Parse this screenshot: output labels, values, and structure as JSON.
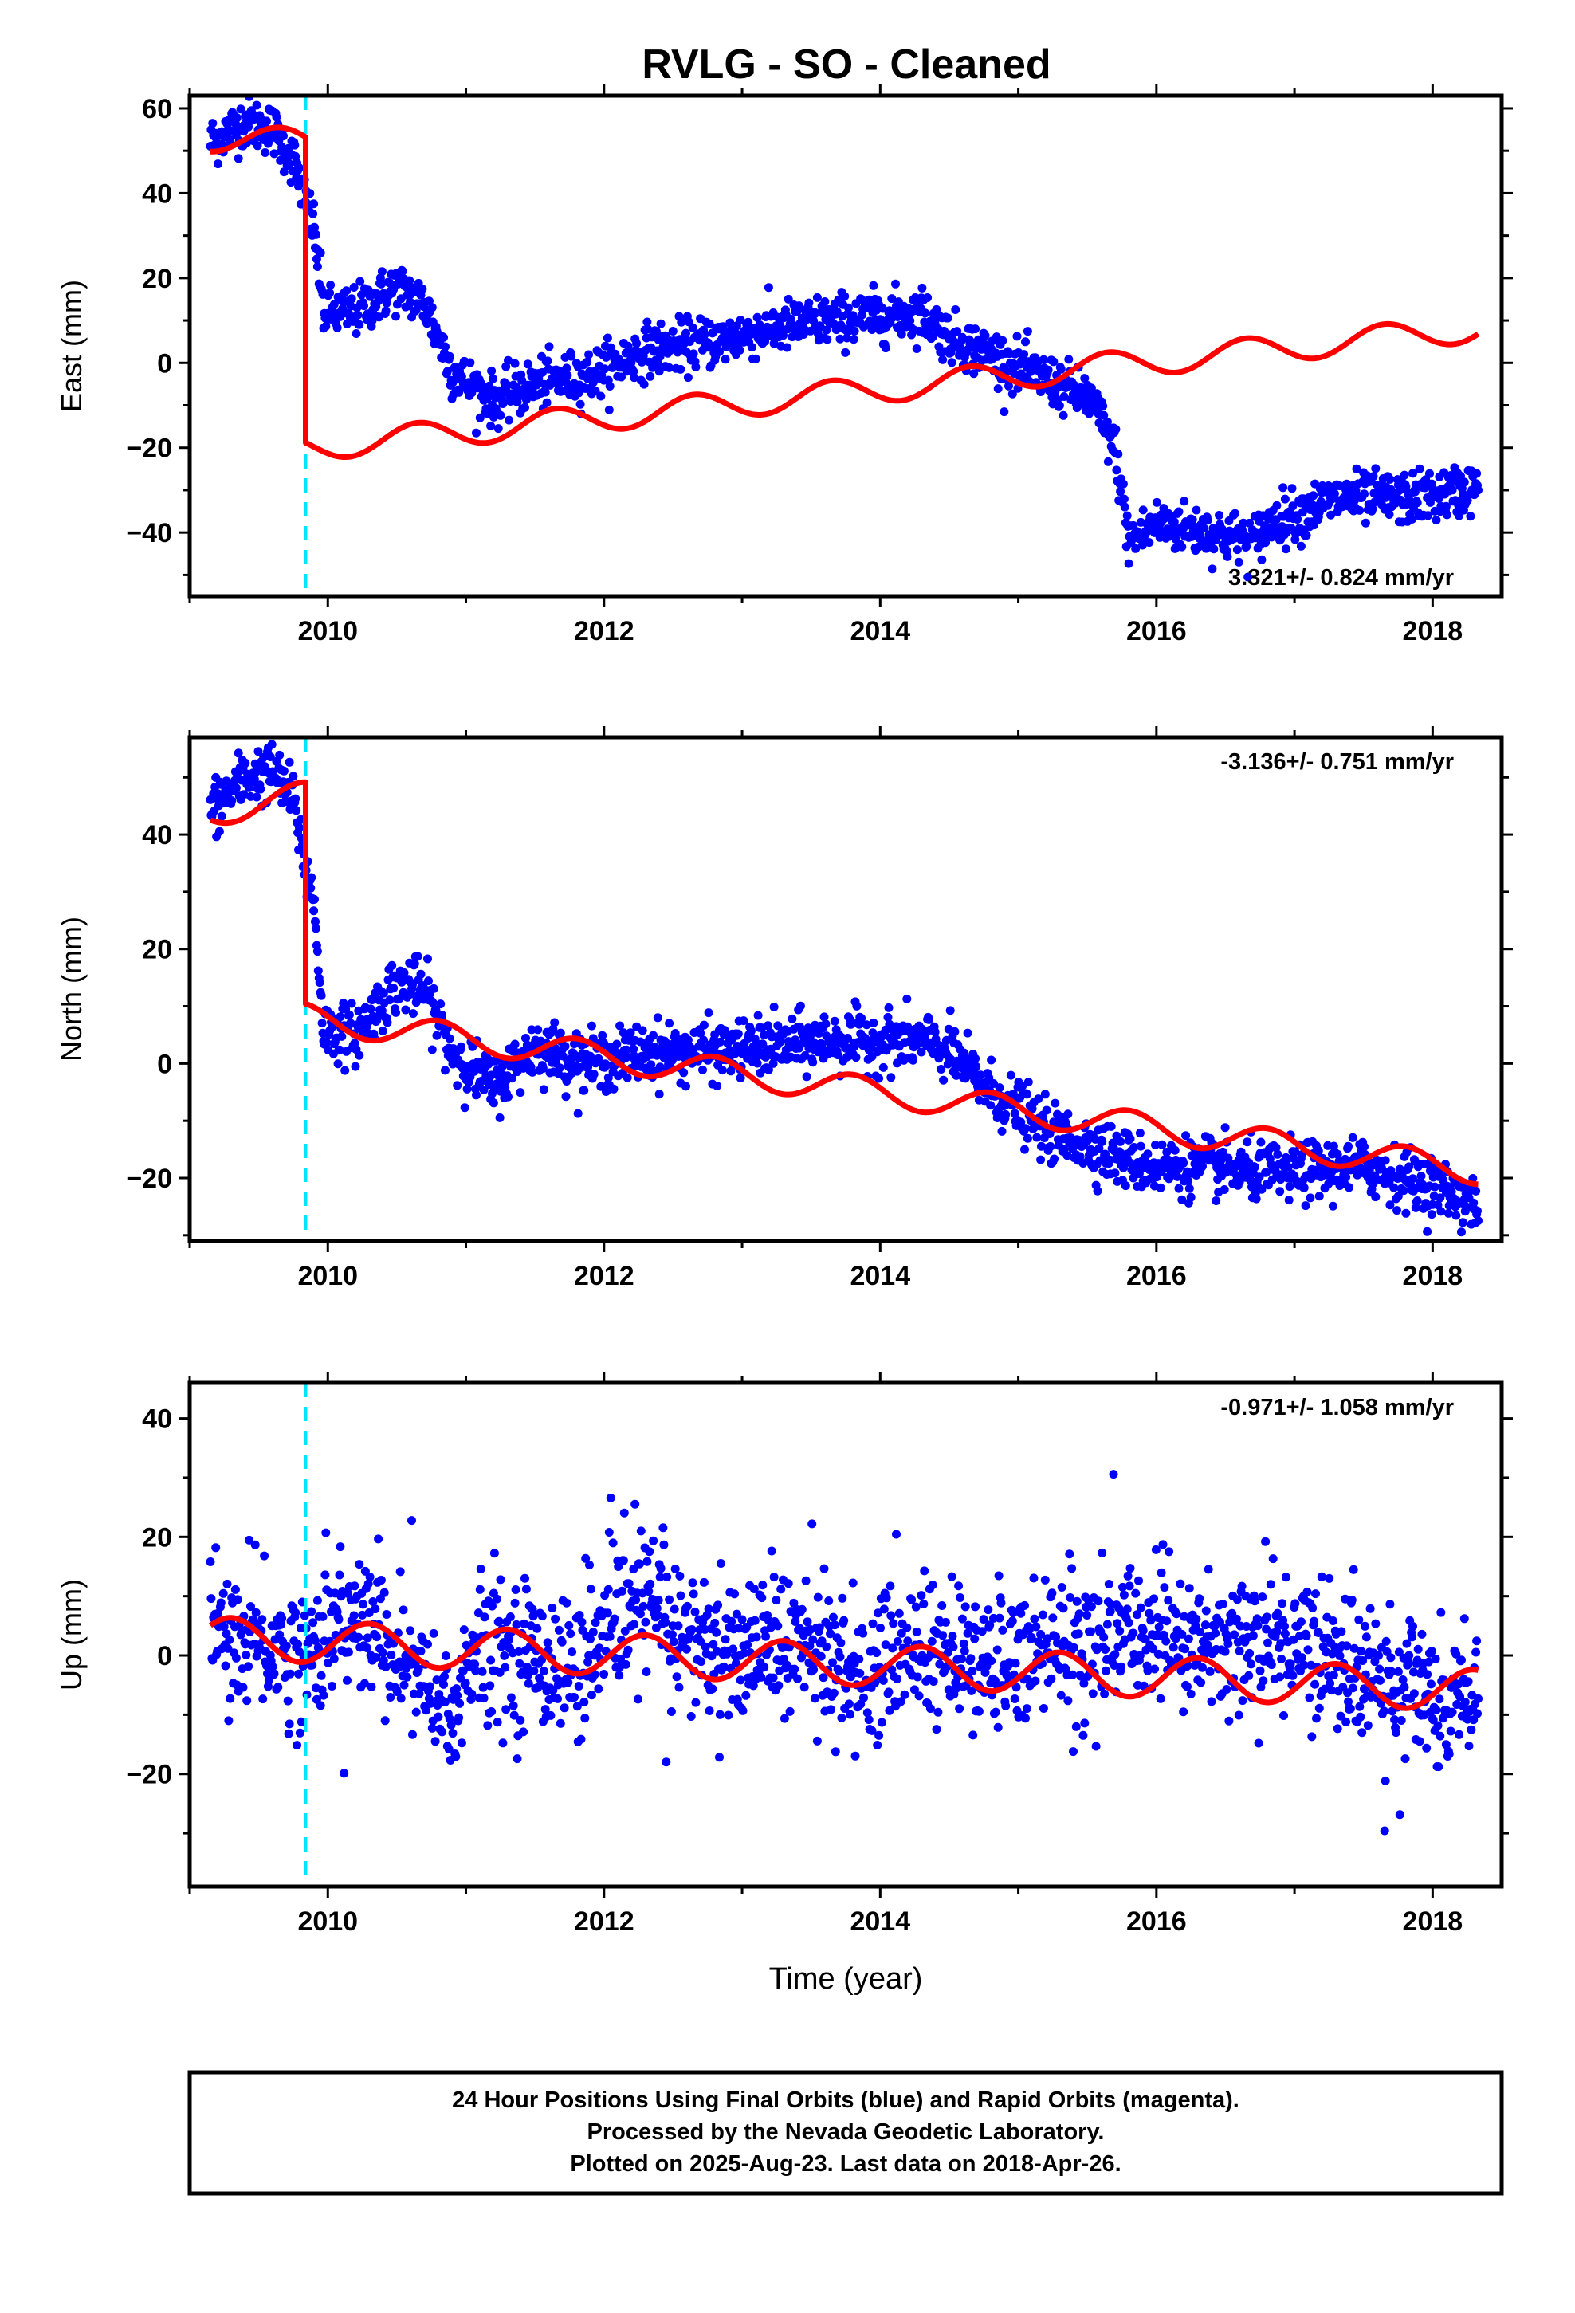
{
  "title": "RVLG  - SO - Cleaned",
  "footer": {
    "lines": [
      "24 Hour Positions Using Final Orbits (blue) and Rapid Orbits (magenta).",
      "Processed by the Nevada Geodetic Laboratory.",
      "Plotted on 2025-Aug-23. Last data on 2018-Apr-26."
    ]
  },
  "colors": {
    "data": "#0000ff",
    "model": "#ff0000",
    "event": "#00e5ff",
    "frame": "#000000"
  },
  "chart_data": [
    {
      "type": "scatter",
      "component": "east",
      "ylabel": "East (mm)",
      "xlabel": "",
      "xlim": [
        2009.0,
        2018.5
      ],
      "ylim": [
        -55,
        63
      ],
      "xticks": [
        2010,
        2012,
        2014,
        2016,
        2018
      ],
      "yticks": [
        -40,
        -20,
        0,
        20,
        40,
        60
      ],
      "event_line_x": 2009.84,
      "rate_text": "3.321+/- 0.824 mm/yr",
      "rate_position": "bottom-right",
      "data_trend": [
        [
          2009.15,
          52
        ],
        [
          2009.4,
          57
        ],
        [
          2009.6,
          55
        ],
        [
          2009.75,
          48
        ],
        [
          2009.84,
          38
        ],
        [
          2009.9,
          32
        ],
        [
          2009.97,
          12
        ],
        [
          2010.2,
          12
        ],
        [
          2010.5,
          18
        ],
        [
          2010.7,
          14
        ],
        [
          2010.9,
          -2
        ],
        [
          2011.2,
          -9
        ],
        [
          2011.5,
          -5
        ],
        [
          2011.9,
          -3
        ],
        [
          2012.3,
          3
        ],
        [
          2012.8,
          5
        ],
        [
          2013.2,
          8
        ],
        [
          2013.6,
          10
        ],
        [
          2014.0,
          11
        ],
        [
          2014.3,
          12
        ],
        [
          2014.5,
          6
        ],
        [
          2014.8,
          2
        ],
        [
          2015.2,
          -4
        ],
        [
          2015.5,
          -8
        ],
        [
          2015.7,
          -20
        ],
        [
          2015.8,
          -42
        ],
        [
          2016.0,
          -38
        ],
        [
          2016.4,
          -40
        ],
        [
          2016.7,
          -42
        ],
        [
          2016.85,
          -37
        ],
        [
          2017.0,
          -36
        ],
        [
          2017.3,
          -32
        ],
        [
          2017.8,
          -32
        ],
        [
          2018.1,
          -31
        ],
        [
          2018.33,
          -29
        ]
      ],
      "data_scatter_mm": 3,
      "model": {
        "segments": [
          {
            "t0": 2009.15,
            "t1": 2009.84,
            "a": 53.0,
            "rate": -1.4,
            "amp": 3.2,
            "phase_year": 2009.4
          },
          {
            "t0": 2009.84,
            "t1": 2018.33,
            "a": -20.0,
            "rate": 3.321,
            "amp": 3.2,
            "phase_year": 2009.4
          }
        ]
      }
    },
    {
      "type": "scatter",
      "component": "north",
      "ylabel": "North (mm)",
      "xlabel": "",
      "xlim": [
        2009.0,
        2018.5
      ],
      "ylim": [
        -31,
        57
      ],
      "xticks": [
        2010,
        2012,
        2014,
        2016,
        2018
      ],
      "yticks": [
        -20,
        0,
        20,
        40
      ],
      "event_line_x": 2009.84,
      "rate_text": "-3.136+/- 0.751 mm/yr",
      "rate_position": "top-right",
      "data_trend": [
        [
          2009.15,
          44
        ],
        [
          2009.4,
          50
        ],
        [
          2009.6,
          51
        ],
        [
          2009.75,
          46
        ],
        [
          2009.84,
          34
        ],
        [
          2009.9,
          28
        ],
        [
          2009.97,
          6
        ],
        [
          2010.2,
          5
        ],
        [
          2010.5,
          14
        ],
        [
          2010.7,
          13
        ],
        [
          2010.9,
          2
        ],
        [
          2011.2,
          -4
        ],
        [
          2011.5,
          3
        ],
        [
          2011.9,
          0
        ],
        [
          2012.3,
          2
        ],
        [
          2012.8,
          2
        ],
        [
          2013.2,
          3
        ],
        [
          2013.6,
          4
        ],
        [
          2014.0,
          4
        ],
        [
          2014.3,
          4
        ],
        [
          2014.5,
          2
        ],
        [
          2014.8,
          -5
        ],
        [
          2015.0,
          -8
        ],
        [
          2015.2,
          -12
        ],
        [
          2015.5,
          -14
        ],
        [
          2015.8,
          -17
        ],
        [
          2016.0,
          -18
        ],
        [
          2016.4,
          -18
        ],
        [
          2016.7,
          -19
        ],
        [
          2017.0,
          -19
        ],
        [
          2017.5,
          -18
        ],
        [
          2017.8,
          -20
        ],
        [
          2018.1,
          -22
        ],
        [
          2018.33,
          -25
        ]
      ],
      "data_scatter_mm": 2.5,
      "model": {
        "segments": [
          {
            "t0": 2009.15,
            "t1": 2009.84,
            "a": 44.0,
            "rate": 4.0,
            "amp": 2.5,
            "phase_year": 2009.55
          },
          {
            "t0": 2009.84,
            "t1": 2018.33,
            "a": 8.0,
            "rate": -3.136,
            "amp": 2.5,
            "phase_year": 2009.55
          }
        ]
      }
    },
    {
      "type": "scatter",
      "component": "up",
      "ylabel": "Up (mm)",
      "xlabel": "Time (year)",
      "xlim": [
        2009.0,
        2018.5
      ],
      "ylim": [
        -39,
        46
      ],
      "xticks": [
        2010,
        2012,
        2014,
        2016,
        2018
      ],
      "yticks": [
        -20,
        0,
        20,
        40
      ],
      "event_line_x": 2009.84,
      "rate_text": "-0.971+/- 1.058 mm/yr",
      "rate_position": "top-right",
      "data_trend": [
        [
          2009.15,
          4
        ],
        [
          2009.5,
          2
        ],
        [
          2009.8,
          0
        ],
        [
          2010.1,
          6
        ],
        [
          2010.4,
          4
        ],
        [
          2010.7,
          -6
        ],
        [
          2010.9,
          -10
        ],
        [
          2011.1,
          2
        ],
        [
          2011.5,
          0
        ],
        [
          2011.8,
          -3
        ],
        [
          2012.1,
          5
        ],
        [
          2012.3,
          10
        ],
        [
          2012.6,
          3
        ],
        [
          2012.9,
          0
        ],
        [
          2013.2,
          3
        ],
        [
          2013.6,
          0
        ],
        [
          2013.9,
          -3
        ],
        [
          2014.2,
          2
        ],
        [
          2014.5,
          0
        ],
        [
          2014.8,
          -3
        ],
        [
          2015.1,
          2
        ],
        [
          2015.5,
          2
        ],
        [
          2015.9,
          4
        ],
        [
          2016.3,
          2
        ],
        [
          2016.6,
          2
        ],
        [
          2017.0,
          3
        ],
        [
          2017.3,
          0
        ],
        [
          2017.7,
          -5
        ],
        [
          2018.0,
          -6
        ],
        [
          2018.33,
          -8
        ]
      ],
      "data_scatter_mm": 6,
      "model": {
        "segments": [
          {
            "t0": 2009.15,
            "t1": 2018.33,
            "a": 3.0,
            "rate": -0.971,
            "amp": 3.5,
            "phase_year": 2010.05
          }
        ]
      }
    }
  ]
}
